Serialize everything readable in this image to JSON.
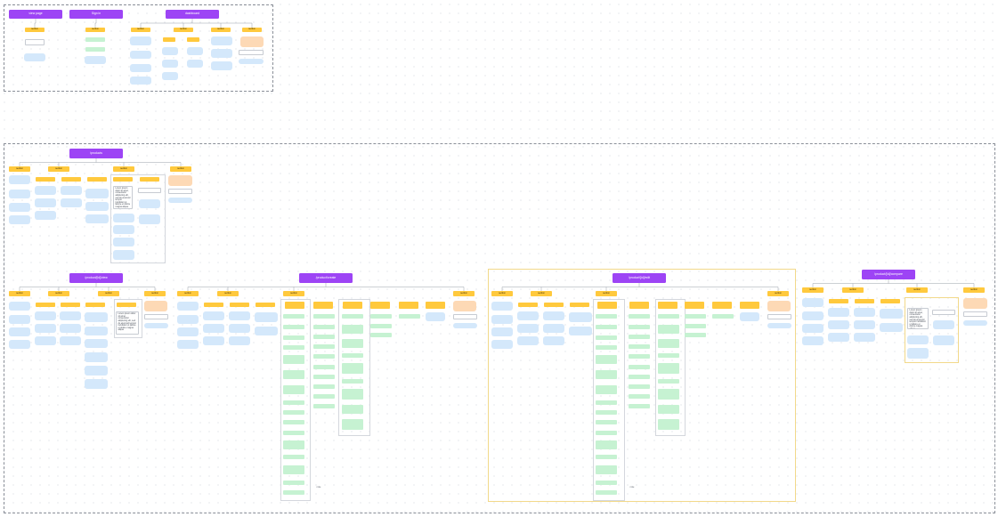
{
  "sitemap": {
    "pages": {
      "view_page": "view page",
      "sign_in": "Sign in",
      "dashboard": "dashboard",
      "products": "/products",
      "product_view": "/product/[id]/view",
      "product_create": "/product/create",
      "product_edit": "/product/[id]/edit",
      "product_compare": "/product/[id]/compare"
    },
    "section_label": "section",
    "note_text": "Lorem ipsum dolor sit amet, consectetur adipiscing elit, sed do eiusmod tempor incididunt ut labore et dolore magna aliqua.",
    "annotation_label": "note"
  }
}
